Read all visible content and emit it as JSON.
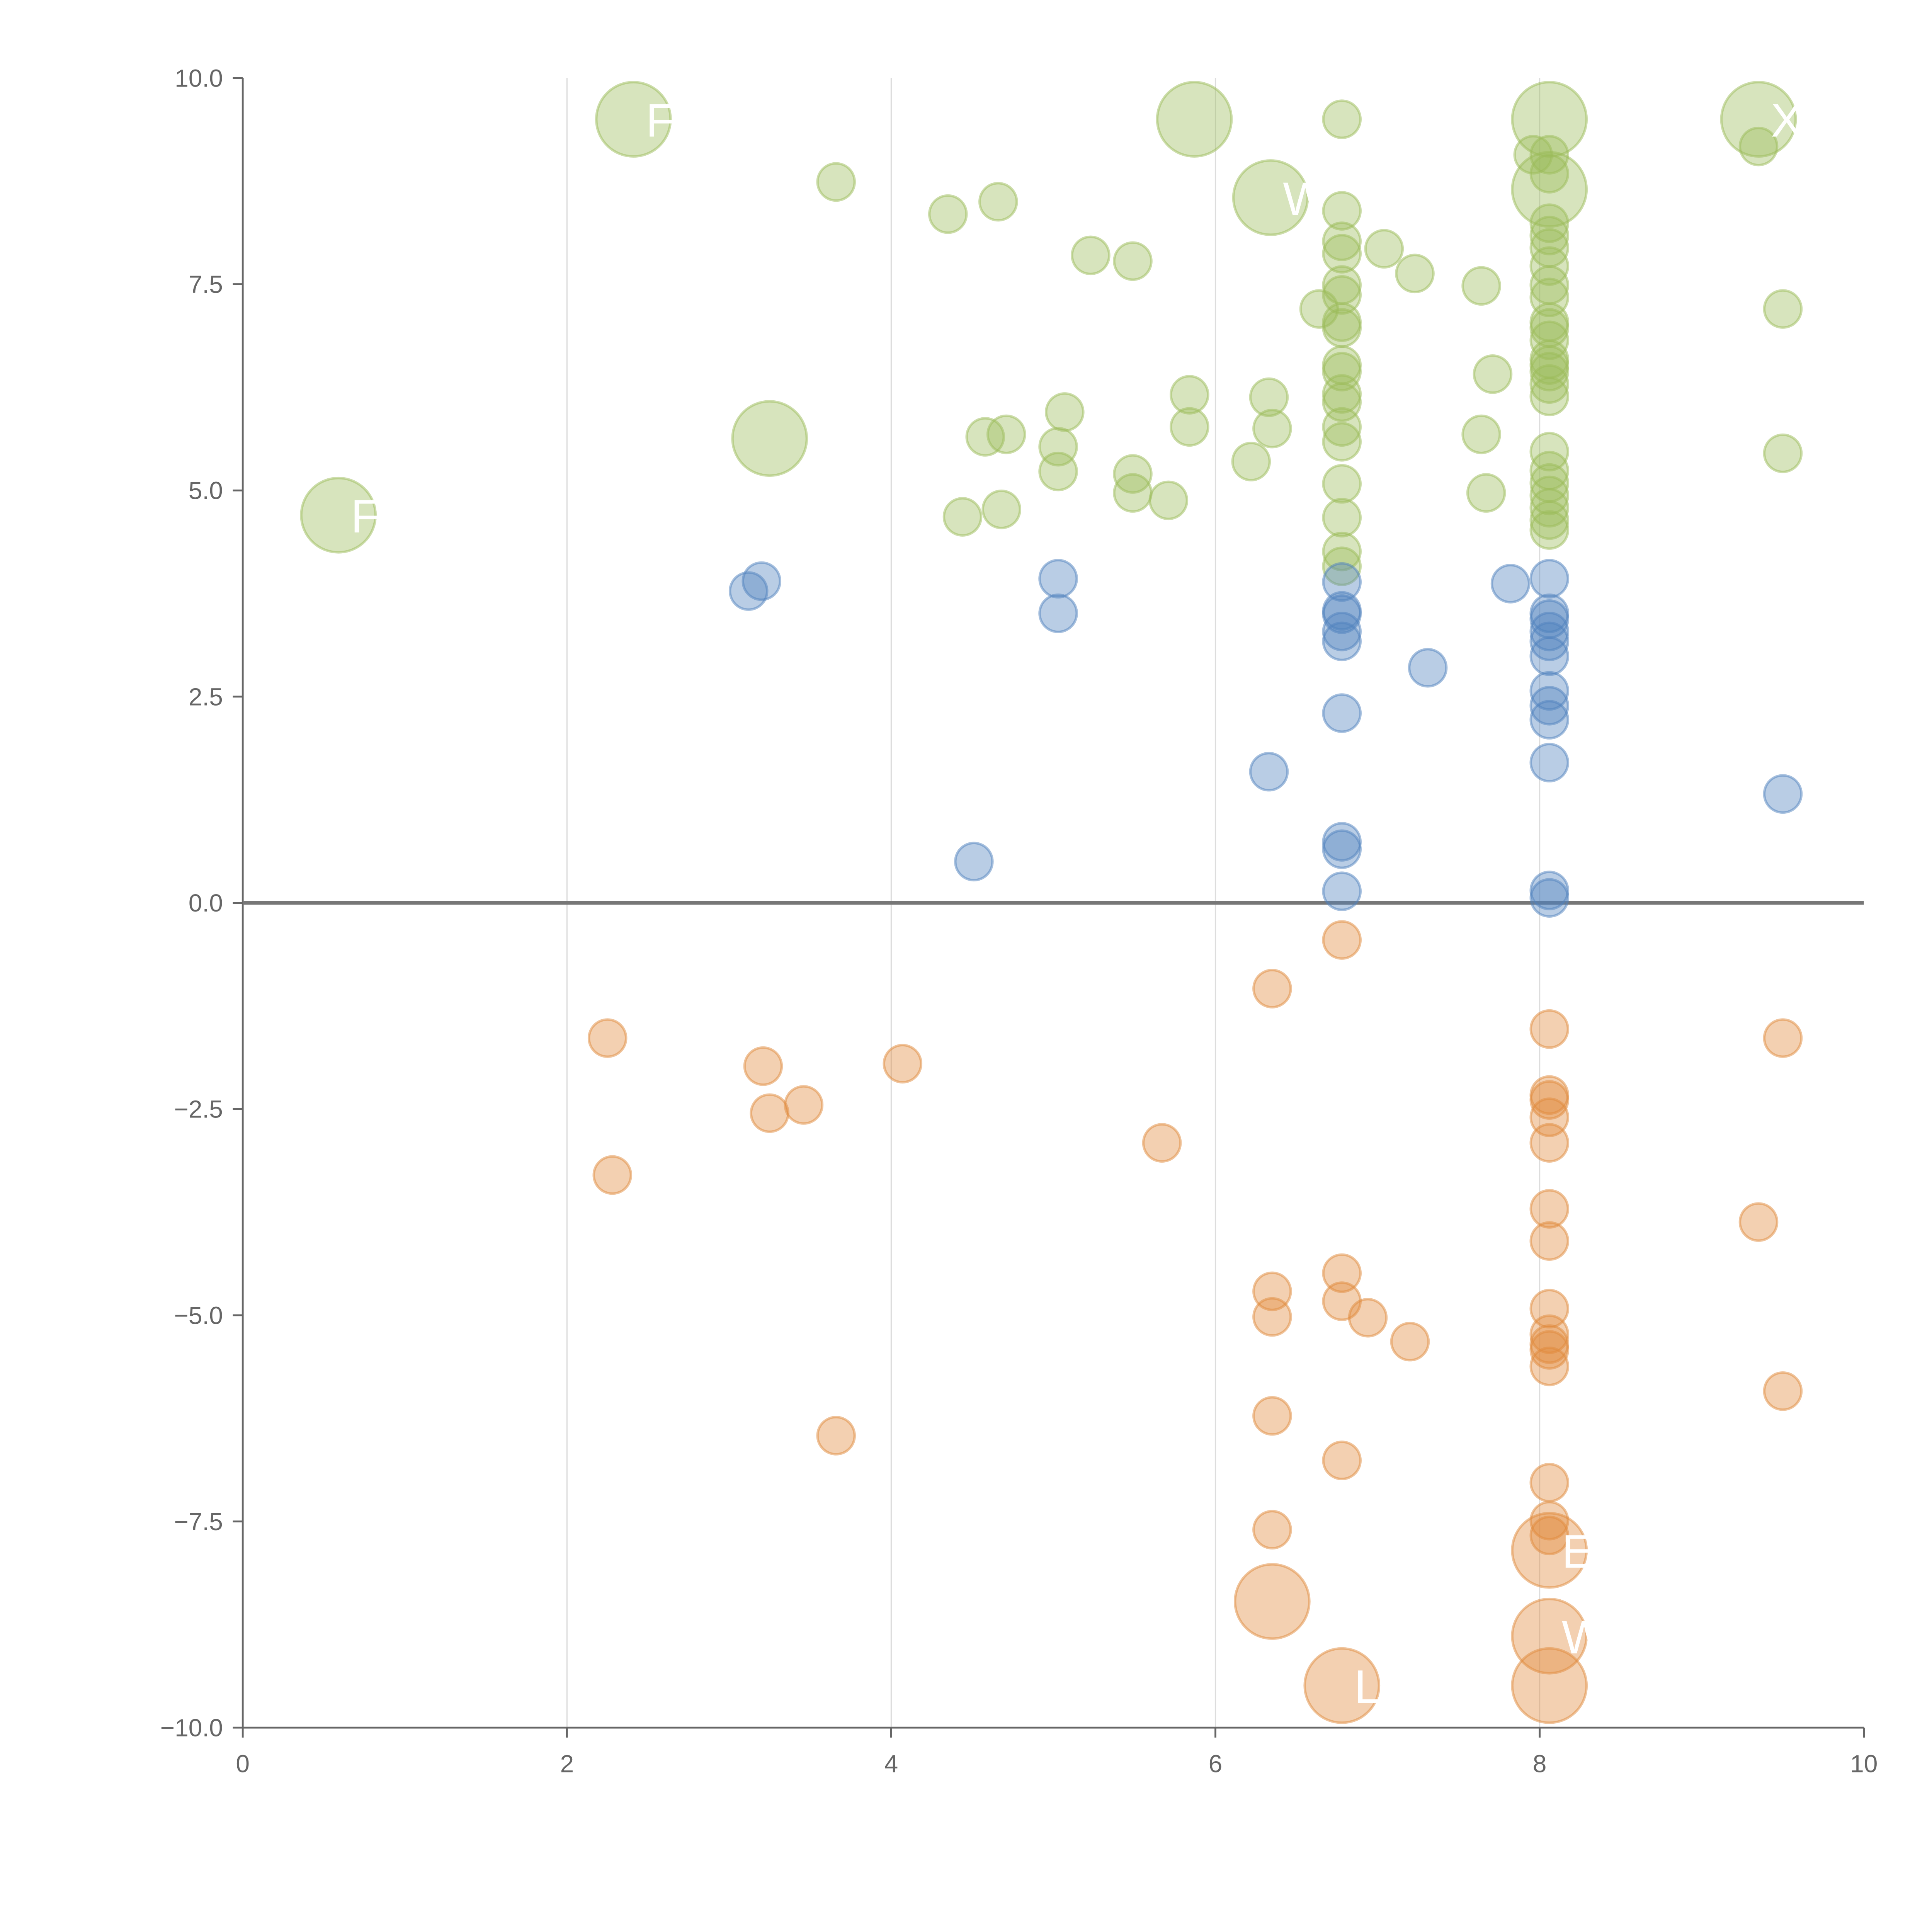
{
  "chart_data": {
    "type": "scatter",
    "title": "",
    "xlabel": "",
    "ylabel": "",
    "xlim": [
      0,
      10
    ],
    "ylim": [
      -10,
      10
    ],
    "x_ticks": [
      0,
      2,
      4,
      6,
      8,
      10
    ],
    "x_tick_labels": [
      "0",
      "2",
      "4",
      "6",
      "8",
      "10"
    ],
    "y_ticks": [
      10,
      7.5,
      5,
      2.5,
      0,
      -2.5,
      -5,
      -7.5,
      -10
    ],
    "y_tick_labels": [
      "10.0",
      "7.5",
      "5.0",
      "2.5",
      "0.0",
      "−2.5",
      "−5.0",
      "−7.5",
      "−10.0"
    ],
    "grid": "vertical",
    "point_format": "[x, y, size]",
    "series": [
      {
        "name": "green",
        "color": "#9bbb59",
        "points": [
          [
            2.41,
            9.5,
            2
          ],
          [
            5.87,
            9.5,
            2
          ],
          [
            8.06,
            9.5,
            2
          ],
          [
            9.35,
            9.5,
            2
          ],
          [
            6.34,
            8.55,
            2
          ],
          [
            8.06,
            8.65,
            2
          ],
          [
            3.25,
            5.63,
            2
          ],
          [
            0.59,
            4.7,
            2
          ],
          [
            3.66,
            8.74,
            1
          ],
          [
            4.35,
            8.35,
            1
          ],
          [
            4.66,
            8.5,
            1
          ],
          [
            5.23,
            7.85,
            1
          ],
          [
            5.49,
            7.78,
            1
          ],
          [
            6.78,
            9.5,
            1
          ],
          [
            6.78,
            8.39,
            1
          ],
          [
            6.78,
            8.02,
            1
          ],
          [
            6.78,
            7.87,
            1
          ],
          [
            6.78,
            7.49,
            1
          ],
          [
            6.78,
            7.37,
            1
          ],
          [
            6.64,
            7.2,
            1
          ],
          [
            6.78,
            7.04,
            1
          ],
          [
            6.78,
            6.97,
            1
          ],
          [
            7.04,
            7.93,
            1
          ],
          [
            7.23,
            7.63,
            1
          ],
          [
            7.64,
            7.48,
            1
          ],
          [
            7.71,
            6.41,
            1
          ],
          [
            7.64,
            5.68,
            1
          ],
          [
            7.67,
            4.97,
            1
          ],
          [
            6.78,
            6.52,
            1
          ],
          [
            6.78,
            6.44,
            1
          ],
          [
            6.78,
            6.17,
            1
          ],
          [
            6.78,
            6.07,
            1
          ],
          [
            6.78,
            5.77,
            1
          ],
          [
            6.78,
            5.59,
            1
          ],
          [
            6.78,
            5.08,
            1
          ],
          [
            6.78,
            4.67,
            1
          ],
          [
            6.78,
            4.26,
            1
          ],
          [
            6.78,
            4.08,
            1
          ],
          [
            5.84,
            6.16,
            1
          ],
          [
            5.84,
            5.77,
            1
          ],
          [
            6.33,
            6.13,
            1
          ],
          [
            6.35,
            5.75,
            1
          ],
          [
            6.22,
            5.35,
            1
          ],
          [
            5.07,
            5.95,
            1
          ],
          [
            5.03,
            5.53,
            1
          ],
          [
            5.03,
            5.23,
            1
          ],
          [
            4.58,
            5.65,
            1
          ],
          [
            4.71,
            5.68,
            1
          ],
          [
            4.44,
            4.68,
            1
          ],
          [
            4.68,
            4.77,
            1
          ],
          [
            5.49,
            5.2,
            1
          ],
          [
            5.49,
            4.97,
            1
          ],
          [
            5.71,
            4.88,
            1
          ],
          [
            9.35,
            9.17,
            1
          ],
          [
            9.5,
            7.2,
            1
          ],
          [
            9.5,
            5.45,
            1
          ],
          [
            7.96,
            9.07,
            1
          ],
          [
            8.06,
            9.07,
            1
          ],
          [
            8.06,
            8.84,
            1
          ],
          [
            8.06,
            8.24,
            1
          ],
          [
            8.06,
            8.09,
            1
          ],
          [
            8.06,
            7.94,
            1
          ],
          [
            8.06,
            7.72,
            1
          ],
          [
            8.06,
            7.49,
            1
          ],
          [
            8.06,
            7.34,
            1
          ],
          [
            8.06,
            7.04,
            1
          ],
          [
            8.06,
            6.97,
            1
          ],
          [
            8.06,
            6.82,
            1
          ],
          [
            8.06,
            6.59,
            1
          ],
          [
            8.06,
            6.52,
            1
          ],
          [
            8.06,
            6.44,
            1
          ],
          [
            8.06,
            6.29,
            1
          ],
          [
            8.06,
            6.14,
            1
          ],
          [
            8.06,
            5.47,
            1
          ],
          [
            8.06,
            5.24,
            1
          ],
          [
            8.06,
            5.09,
            1
          ],
          [
            8.06,
            4.94,
            1
          ],
          [
            8.06,
            4.79,
            1
          ],
          [
            8.06,
            4.64,
            1
          ],
          [
            8.06,
            4.52,
            1
          ]
        ]
      },
      {
        "name": "blue",
        "color": "#4f81bd",
        "points": [
          [
            3.12,
            3.78,
            1
          ],
          [
            3.2,
            3.9,
            1
          ],
          [
            5.03,
            3.93,
            1
          ],
          [
            5.03,
            3.51,
            1
          ],
          [
            4.51,
            0.5,
            1
          ],
          [
            6.33,
            1.59,
            1
          ],
          [
            6.78,
            3.89,
            1
          ],
          [
            6.78,
            3.54,
            1
          ],
          [
            6.78,
            3.5,
            1
          ],
          [
            6.78,
            3.29,
            1
          ],
          [
            6.78,
            3.17,
            1
          ],
          [
            6.78,
            2.3,
            1
          ],
          [
            6.78,
            0.74,
            1
          ],
          [
            6.78,
            0.65,
            1
          ],
          [
            6.78,
            0.14,
            1
          ],
          [
            7.31,
            2.85,
            1
          ],
          [
            7.82,
            3.87,
            1
          ],
          [
            8.06,
            3.93,
            1
          ],
          [
            8.06,
            3.51,
            1
          ],
          [
            8.06,
            3.44,
            1
          ],
          [
            8.06,
            3.29,
            1
          ],
          [
            8.06,
            3.17,
            1
          ],
          [
            8.06,
            2.99,
            1
          ],
          [
            8.06,
            2.57,
            1
          ],
          [
            8.06,
            2.39,
            1
          ],
          [
            8.06,
            2.22,
            1
          ],
          [
            8.06,
            1.7,
            1
          ],
          [
            8.06,
            0.15,
            1
          ],
          [
            8.06,
            0.06,
            1
          ],
          [
            9.5,
            1.32,
            1
          ]
        ]
      },
      {
        "name": "orange",
        "color": "#e08a3c",
        "points": [
          [
            2.25,
            -1.64,
            1
          ],
          [
            2.28,
            -3.3,
            1
          ],
          [
            3.21,
            -1.98,
            1
          ],
          [
            3.25,
            -2.55,
            1
          ],
          [
            3.46,
            -2.45,
            1
          ],
          [
            4.07,
            -1.95,
            1
          ],
          [
            3.66,
            -6.46,
            1
          ],
          [
            5.67,
            -2.91,
            1
          ],
          [
            6.35,
            -1.04,
            1
          ],
          [
            6.78,
            -0.45,
            1
          ],
          [
            6.35,
            -4.71,
            1
          ],
          [
            6.35,
            -5.02,
            1
          ],
          [
            6.35,
            -6.22,
            1
          ],
          [
            6.35,
            -7.6,
            1
          ],
          [
            6.78,
            -4.49,
            1
          ],
          [
            6.78,
            -4.83,
            1
          ],
          [
            6.94,
            -5.03,
            1
          ],
          [
            7.2,
            -5.32,
            1
          ],
          [
            6.78,
            -6.76,
            1
          ],
          [
            8.06,
            -1.53,
            1
          ],
          [
            8.06,
            -2.33,
            1
          ],
          [
            8.06,
            -2.39,
            1
          ],
          [
            8.06,
            -2.6,
            1
          ],
          [
            8.06,
            -2.91,
            1
          ],
          [
            8.06,
            -3.71,
            1
          ],
          [
            8.06,
            -4.1,
            1
          ],
          [
            8.06,
            -4.92,
            1
          ],
          [
            8.06,
            -5.23,
            1
          ],
          [
            8.06,
            -5.35,
            1
          ],
          [
            8.06,
            -5.42,
            1
          ],
          [
            8.06,
            -5.62,
            1
          ],
          [
            8.06,
            -7.03,
            1
          ],
          [
            8.06,
            -7.49,
            1
          ],
          [
            8.06,
            -7.67,
            1
          ],
          [
            9.35,
            -3.87,
            1
          ],
          [
            9.5,
            -1.64,
            1
          ],
          [
            9.5,
            -5.92,
            1
          ],
          [
            6.35,
            -8.47,
            2
          ],
          [
            6.78,
            -9.49,
            2
          ],
          [
            8.06,
            -7.85,
            2
          ],
          [
            8.06,
            -8.89,
            2
          ],
          [
            8.06,
            -9.49,
            2
          ]
        ]
      }
    ],
    "annotations": [
      {
        "text": "F",
        "x": 2.41,
        "y": 9.5
      },
      {
        "text": "F",
        "x": 0.59,
        "y": 4.7
      },
      {
        "text": "W",
        "x": 6.34,
        "y": 8.55
      },
      {
        "text": "X",
        "x": 9.35,
        "y": 9.5
      },
      {
        "text": "LF",
        "x": 6.78,
        "y": -9.49
      },
      {
        "text": "E",
        "x": 8.06,
        "y": -7.85
      },
      {
        "text": "W",
        "x": 8.06,
        "y": -8.89
      }
    ]
  }
}
